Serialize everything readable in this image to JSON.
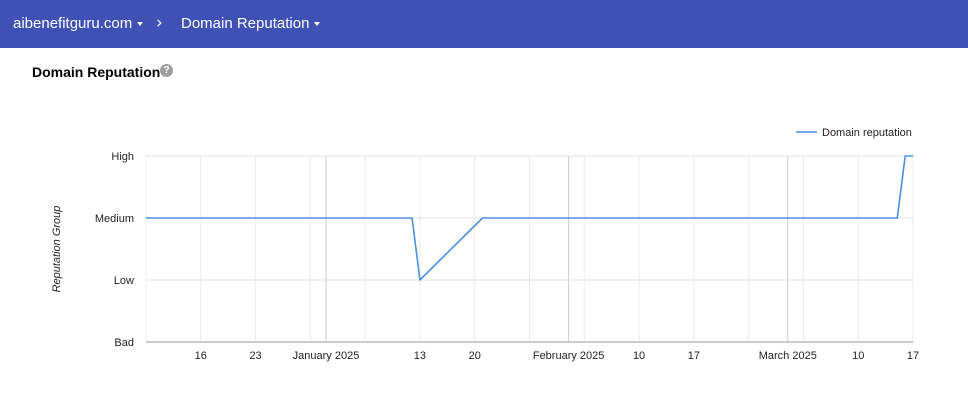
{
  "header": {
    "domain": "aibenefitguru.com",
    "separator": "›",
    "page": "Domain Reputation",
    "bg_color": "#3f51b5"
  },
  "section": {
    "title": "Domain Reputation",
    "help_icon": "help-circle-icon"
  },
  "chart_data": {
    "type": "line",
    "title": "",
    "xlabel": "",
    "ylabel": "Reputation Group",
    "y_categories": [
      "Bad",
      "Low",
      "Medium",
      "High"
    ],
    "x_range": [
      "2024-12-09",
      "2025-03-17"
    ],
    "x_ticks": [
      {
        "date": "2024-12-16",
        "label": "16",
        "major": false
      },
      {
        "date": "2024-12-23",
        "label": "23",
        "major": false
      },
      {
        "date": "2025-01-01",
        "label": "January 2025",
        "major": true
      },
      {
        "date": "2025-01-13",
        "label": "13",
        "major": false
      },
      {
        "date": "2025-01-20",
        "label": "20",
        "major": false
      },
      {
        "date": "2025-02-01",
        "label": "February 2025",
        "major": true
      },
      {
        "date": "2025-02-10",
        "label": "10",
        "major": false
      },
      {
        "date": "2025-02-17",
        "label": "17",
        "major": false
      },
      {
        "date": "2025-03-01",
        "label": "March 2025",
        "major": true
      },
      {
        "date": "2025-03-10",
        "label": "10",
        "major": false
      },
      {
        "date": "2025-03-17",
        "label": "17",
        "major": false
      }
    ],
    "series": [
      {
        "name": "Domain reputation",
        "color": "#4a90e2",
        "points": [
          {
            "x": "2024-12-09",
            "y": "Medium"
          },
          {
            "x": "2025-01-12",
            "y": "Medium"
          },
          {
            "x": "2025-01-13",
            "y": "Low"
          },
          {
            "x": "2025-01-21",
            "y": "Medium"
          },
          {
            "x": "2025-03-15",
            "y": "Medium"
          },
          {
            "x": "2025-03-16",
            "y": "High"
          },
          {
            "x": "2025-03-17",
            "y": "High"
          }
        ]
      }
    ],
    "legend_position": "top-right",
    "grid": true
  }
}
